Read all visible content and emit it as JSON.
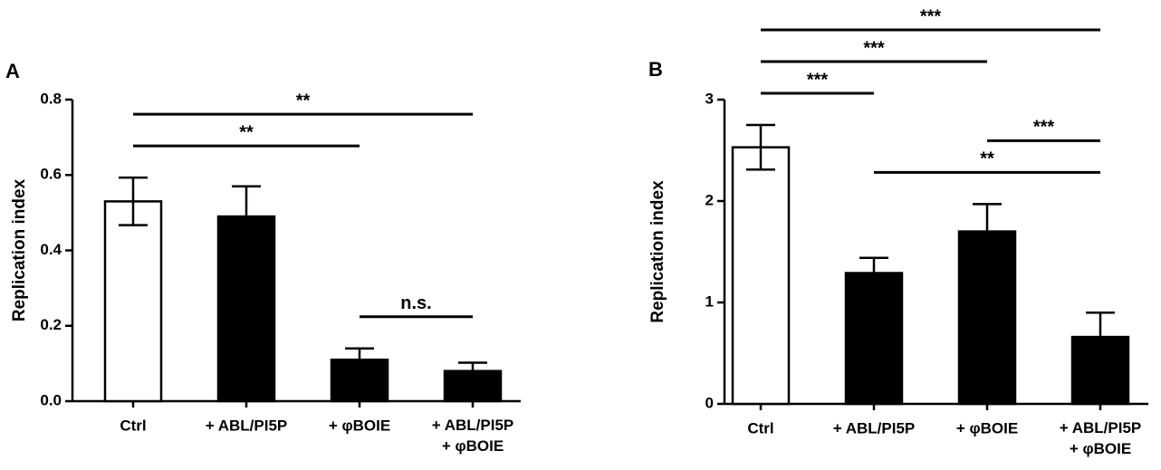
{
  "chart_data": [
    {
      "type": "bar",
      "panel": "A",
      "y_label": "Replication index",
      "categories": [
        "Ctrl",
        "+ ABL/PI5P",
        "+ φBOIE",
        "+ ABL/PI5P\n+ φBOIE"
      ],
      "values": [
        0.53,
        0.49,
        0.11,
        0.08
      ],
      "errors": [
        0.063,
        0.08,
        0.03,
        0.022
      ],
      "colors": [
        "#ffffff",
        "#000000",
        "#000000",
        "#000000"
      ],
      "ylim": [
        0,
        0.8
      ],
      "yticks": [
        {
          "value": 0,
          "label": "0.0"
        },
        0.2,
        0.4,
        0.6,
        0.8
      ],
      "annotations": [
        {
          "text": "n.s.",
          "from": "+ φBOIE",
          "to": "+ ABL/PI5P\n+ φBOIE"
        },
        {
          "text": "**",
          "from": "Ctrl",
          "to": "+ φBOIE"
        },
        {
          "text": "**",
          "from": "Ctrl",
          "to": "+ ABL/PI5P\n+ φBOIE"
        }
      ]
    },
    {
      "type": "bar",
      "panel": "B",
      "y_label": "Replication index",
      "categories": [
        "Ctrl",
        "+ ABL/PI5P",
        "+ φBOIE",
        "+ ABL/PI5P\n+ φBOIE"
      ],
      "values": [
        2.53,
        1.29,
        1.7,
        0.66
      ],
      "errors": [
        0.22,
        0.15,
        0.27,
        0.24
      ],
      "colors": [
        "#ffffff",
        "#000000",
        "#000000",
        "#000000"
      ],
      "ylim": [
        0,
        3
      ],
      "yticks": [
        0,
        1,
        2,
        3
      ],
      "annotations": [
        {
          "text": "**",
          "from": "+ ABL/PI5P",
          "to": "+ ABL/PI5P\n+ φBOIE"
        },
        {
          "text": "***",
          "from": "+ φBOIE",
          "to": "+ ABL/PI5P\n+ φBOIE"
        },
        {
          "text": "***",
          "from": "Ctrl",
          "to": "+ ABL/PI5P"
        },
        {
          "text": "***",
          "from": "Ctrl",
          "to": "+ φBOIE"
        },
        {
          "text": "***",
          "from": "Ctrl",
          "to": "+ ABL/PI5P\n+ φBOIE"
        }
      ]
    }
  ]
}
